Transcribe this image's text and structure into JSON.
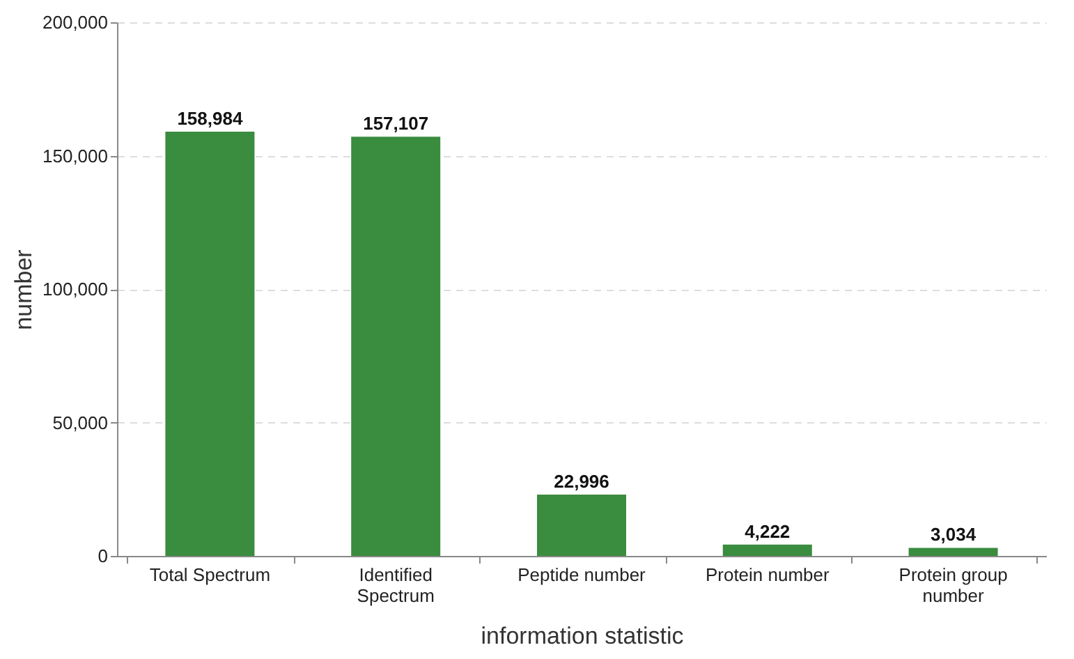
{
  "chart_data": {
    "type": "bar",
    "xlabel": "information statistic",
    "ylabel": "number",
    "categories": [
      "Total Spectrum",
      "Identified Spectrum",
      "Peptide number",
      "Protein number",
      "Protein group number"
    ],
    "values": [
      158984,
      157107,
      22996,
      4222,
      3034
    ],
    "value_labels": [
      "158,984",
      "157,107",
      "22,996",
      "4,222",
      "3,034"
    ],
    "color": "#3a8c3f",
    "ylim": [
      0,
      200000
    ],
    "yticks": [
      0,
      {
        "value": 50000,
        "label": "50,000"
      },
      {
        "value": 100000,
        "label": "100,000"
      },
      {
        "value": 150000,
        "label": "150,000"
      },
      {
        "value": 200000,
        "label": "200,000"
      }
    ],
    "grid": "y"
  }
}
